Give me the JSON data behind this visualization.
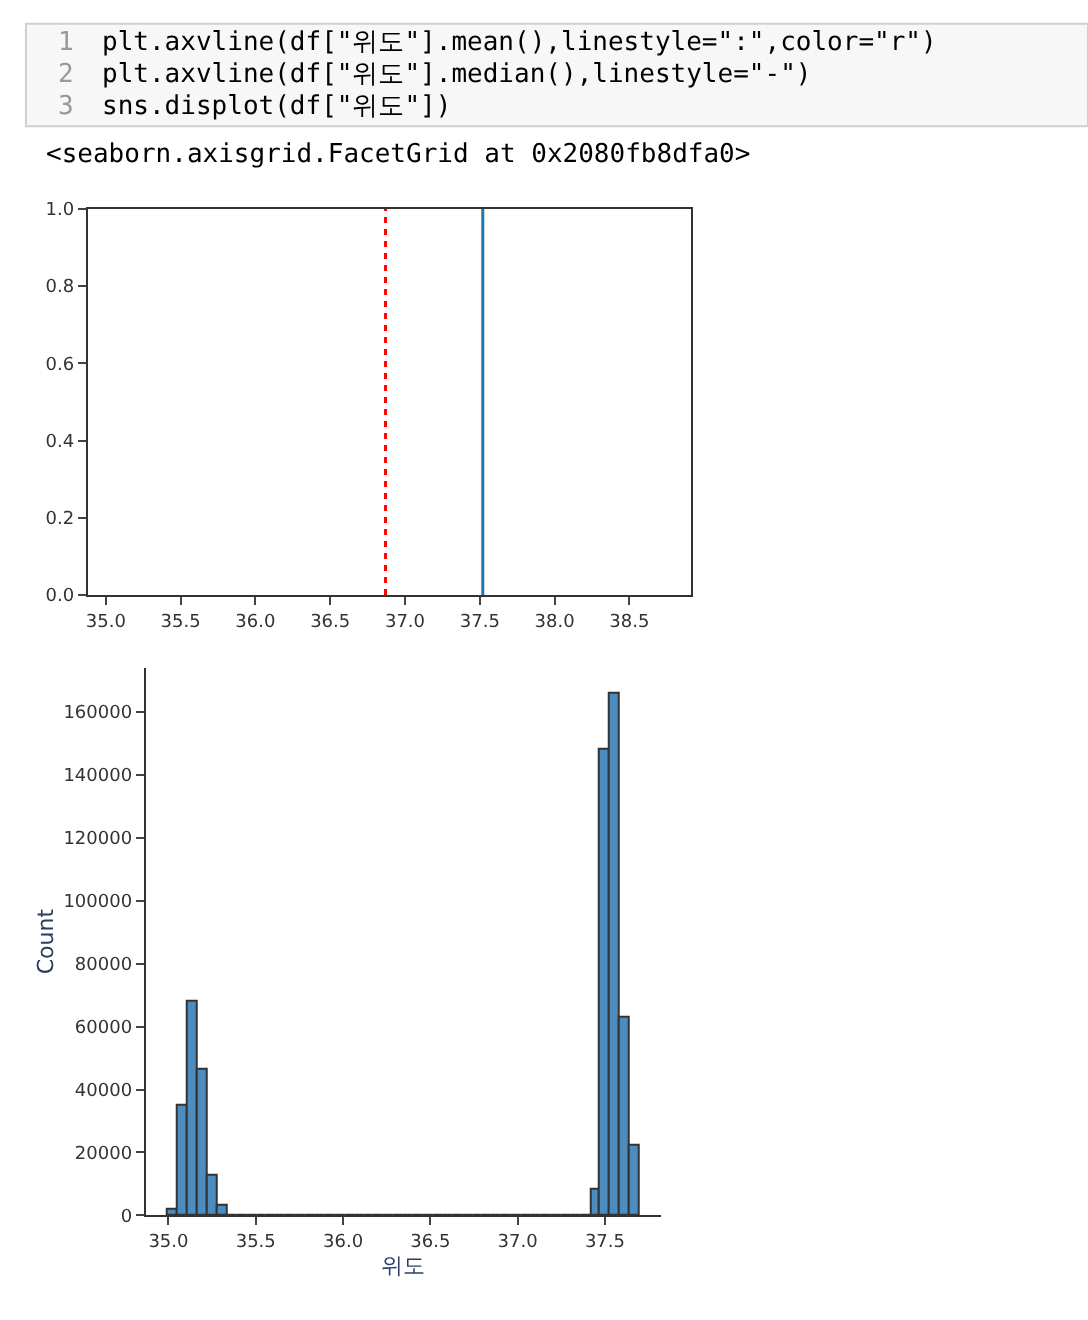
{
  "chart_data": [
    {
      "type": "other",
      "annotations": [
        "1",
        "plt.axvline(df[\"위도\"].mean(),linestyle=\":\",color=\"r\")",
        "2",
        "plt.axvline(df[\"위도\"].median(),linestyle=\"-\")",
        "3",
        "sns.displot(df[\"위도\"])",
        "<seaborn.axisgrid.FacetGrid at 0x2080fb8dfa0>"
      ]
    },
    {
      "type": "line",
      "xlim": [
        34.88,
        38.91
      ],
      "ylim": [
        0,
        1
      ],
      "xticks": [
        {
          "value": 35,
          "label": "35.0"
        },
        {
          "value": 35.5,
          "label": "35.5"
        },
        {
          "value": 36,
          "label": "36.0"
        },
        {
          "value": 36.5,
          "label": "36.5"
        },
        {
          "value": 37,
          "label": "37.0"
        },
        {
          "value": 37.5,
          "label": "37.5"
        },
        {
          "value": 38,
          "label": "38.0"
        },
        {
          "value": 38.5,
          "label": "38.5"
        }
      ],
      "yticks": [
        {
          "value": 0,
          "label": "0.0"
        },
        {
          "value": 0.2,
          "label": "0.2"
        },
        {
          "value": 0.4,
          "label": "0.4"
        },
        {
          "value": 0.6,
          "label": "0.6"
        },
        {
          "value": 0.8,
          "label": "0.8"
        },
        {
          "value": 1,
          "label": "1.0"
        }
      ],
      "ref_lines": [
        {
          "axis": "x",
          "value": 36.87,
          "color": "#ff0000",
          "line_style": "dotted"
        },
        {
          "axis": "x",
          "value": 37.52,
          "color": "#1f77b4",
          "line_style": "solid"
        }
      ]
    },
    {
      "type": "histogram",
      "xlabel": "위도",
      "ylabel": "Count",
      "color": "#4c8cbf",
      "bins": [
        35.0,
        35.05625,
        35.1125,
        35.16875,
        35.225,
        35.28125,
        35.3375,
        35.39375,
        35.45,
        35.50625,
        35.5625,
        35.61875,
        35.675,
        35.73125,
        35.7875,
        35.84375,
        35.9,
        35.95625,
        36.0125,
        36.06875,
        36.125,
        36.18125,
        36.2375,
        36.29375,
        36.35,
        36.40625,
        36.4625,
        36.51875,
        36.575,
        36.63125,
        36.6875,
        36.74375,
        36.8,
        36.85625,
        36.9125,
        36.96875,
        37.025,
        37.08125,
        37.1375,
        37.19375,
        37.25,
        37.30625,
        37.3625,
        37.41875,
        37.475,
        37.53125,
        37.5875,
        37.64375,
        37.7
      ],
      "values": [
        2000,
        35000,
        68000,
        46500,
        12500,
        3000,
        0,
        0,
        0,
        0,
        0,
        0,
        0,
        0,
        0,
        0,
        0,
        0,
        0,
        0,
        0,
        0,
        0,
        0,
        0,
        0,
        0,
        0,
        0,
        0,
        0,
        0,
        0,
        0,
        0,
        0,
        0,
        0,
        0,
        0,
        0,
        0,
        0,
        8000,
        148000,
        166000,
        63000,
        22000
      ],
      "xlim": [
        34.87,
        37.82
      ],
      "ylim": [
        0,
        174000
      ],
      "xticks": [
        {
          "value": 35,
          "label": "35.0"
        },
        {
          "value": 35.5,
          "label": "35.5"
        },
        {
          "value": 36,
          "label": "36.0"
        },
        {
          "value": 36.5,
          "label": "36.5"
        },
        {
          "value": 37,
          "label": "37.0"
        },
        {
          "value": 37.5,
          "label": "37.5"
        }
      ],
      "yticks": [
        0,
        20000,
        40000,
        60000,
        80000,
        100000,
        120000,
        140000,
        160000
      ]
    }
  ]
}
